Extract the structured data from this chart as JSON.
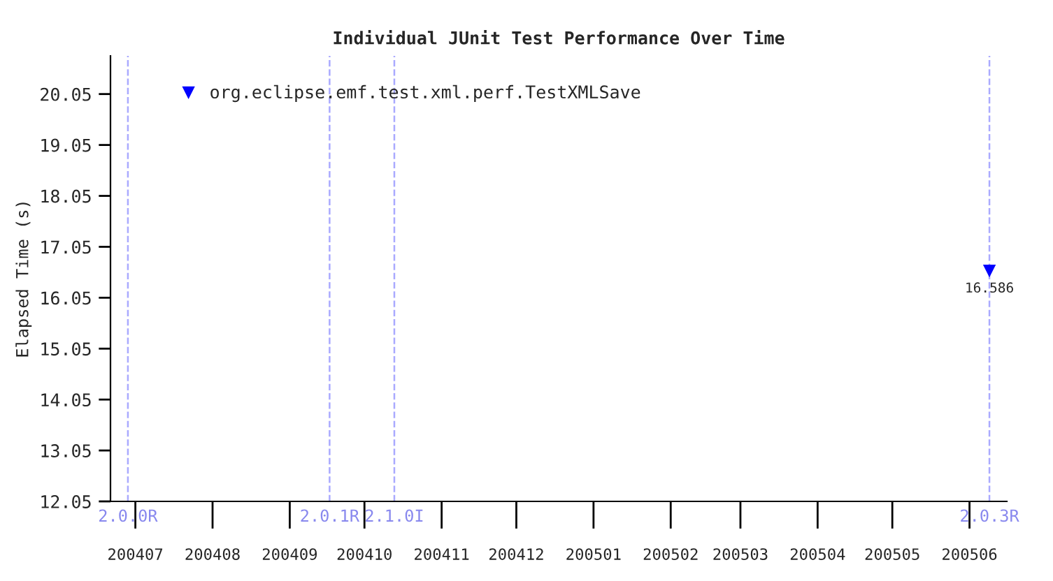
{
  "chart_data": {
    "type": "scatter",
    "title": "Individual JUnit Test Performance Over Time",
    "ylabel": "Elapsed Time (s)",
    "x": [
      "2005-06-09"
    ],
    "series": [
      {
        "name": "org.eclipse.emf.test.xml.perf.TestXMLSave",
        "color": "#0000ff",
        "values": [
          16.586
        ]
      }
    ],
    "marker": "triangle",
    "data_labels": true,
    "legend": "top left",
    "grid": false,
    "xlim": [
      "2004-06-21",
      "2005-06-16"
    ],
    "xticks": [
      {
        "value": "2004-07-01",
        "label": "200407"
      },
      {
        "value": "2004-08-01",
        "label": "200408"
      },
      {
        "value": "2004-09-01",
        "label": "200409"
      },
      {
        "value": "2004-10-01",
        "label": "200410"
      },
      {
        "value": "2004-11-01",
        "label": "200411"
      },
      {
        "value": "2004-12-01",
        "label": "200412"
      },
      {
        "value": "2005-01-01",
        "label": "200501"
      },
      {
        "value": "2005-02-01",
        "label": "200502"
      },
      {
        "value": "2005-03-01",
        "label": "200503"
      },
      {
        "value": "2005-04-01",
        "label": "200504"
      },
      {
        "value": "2005-05-01",
        "label": "200505"
      },
      {
        "value": "2005-06-01",
        "label": "200506"
      }
    ],
    "ylim": [
      12.05,
      20.8
    ],
    "yticks": [
      {
        "value": 12.05,
        "label": "12.05"
      },
      {
        "value": 13.05,
        "label": "13.05"
      },
      {
        "value": 14.05,
        "label": "14.05"
      },
      {
        "value": 15.05,
        "label": "15.05"
      },
      {
        "value": 16.05,
        "label": "16.05"
      },
      {
        "value": 17.05,
        "label": "17.05"
      },
      {
        "value": 18.05,
        "label": "18.05"
      },
      {
        "value": 19.05,
        "label": "19.05"
      },
      {
        "value": 20.05,
        "label": "20.05"
      }
    ],
    "ref_lines": [
      {
        "axis": "x",
        "value": "2004-06-28",
        "label": "2.0.0R",
        "color": "#aaaaff",
        "line_style": "dashed"
      },
      {
        "axis": "x",
        "value": "2004-09-17",
        "label": "2.0.1R",
        "color": "#aaaaff",
        "line_style": "dashed"
      },
      {
        "axis": "x",
        "value": "2004-10-13",
        "label": "2.1.0I",
        "color": "#aaaaff",
        "line_style": "dashed"
      },
      {
        "axis": "x",
        "value": "2005-06-09",
        "label": "2.0.3R",
        "color": "#aaaaff",
        "line_style": "dashed"
      }
    ]
  }
}
